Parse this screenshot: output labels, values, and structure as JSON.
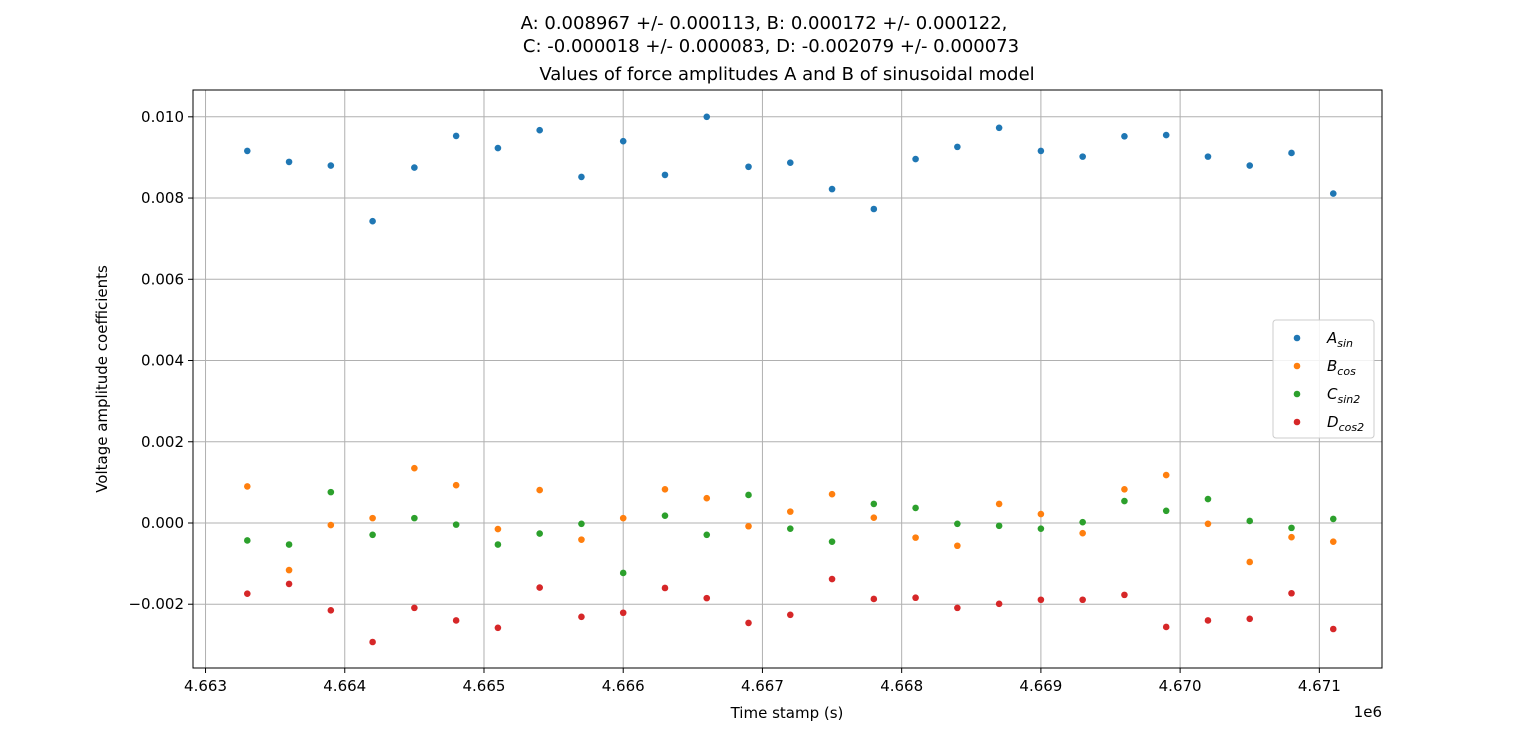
{
  "chart_data": {
    "type": "scatter",
    "suptitle_lines": [
      "A: 0.008967 +/- 0.000113, B: 0.000172 +/- 0.000122,",
      "C: -0.000018 +/- 0.000083, D: -0.002079 +/- 0.000073"
    ],
    "title": "Values of force amplitudes A and B of sinusoidal model",
    "xlabel": "Time stamp (s)",
    "ylabel": "Voltage amplitude coefficients",
    "x_offset_label": "1e6",
    "xlim": [
      4.66291,
      4.67145
    ],
    "ylim": [
      -0.00357,
      0.01066
    ],
    "xticks": [
      4.663,
      4.664,
      4.665,
      4.666,
      4.667,
      4.668,
      4.669,
      4.67,
      4.671
    ],
    "xtick_labels": [
      "4.663",
      "4.664",
      "4.665",
      "4.666",
      "4.667",
      "4.668",
      "4.669",
      "4.670",
      "4.671"
    ],
    "yticks": [
      -0.002,
      0.0,
      0.002,
      0.004,
      0.006,
      0.008,
      0.01
    ],
    "ytick_labels": [
      "−0.002",
      "0.000",
      "0.002",
      "0.004",
      "0.006",
      "0.008",
      "0.010"
    ],
    "grid": true,
    "legend_position": "center-right",
    "x": [
      4.6633,
      4.6636,
      4.6639,
      4.6642,
      4.6645,
      4.6648,
      4.6651,
      4.6654,
      4.6657,
      4.666,
      4.6663,
      4.6666,
      4.6669,
      4.6672,
      4.6675,
      4.6678,
      4.6681,
      4.6684,
      4.6687,
      4.669,
      4.6693,
      4.6696,
      4.6699,
      4.6702,
      4.6705,
      4.6708,
      4.6711
    ],
    "series": [
      {
        "name": "A",
        "subscript": "sin",
        "color": "#1f77b4",
        "values": [
          0.00916,
          0.00889,
          0.0088,
          0.00743,
          0.00875,
          0.00953,
          0.00923,
          0.00967,
          0.00852,
          0.0094,
          0.00857,
          0.01,
          0.00877,
          0.00887,
          0.00822,
          0.00773,
          0.00896,
          0.00926,
          0.00973,
          0.00916,
          0.00902,
          0.00952,
          0.00955,
          0.00902,
          0.0088,
          0.00911,
          0.00811
        ]
      },
      {
        "name": "B",
        "subscript": "cos",
        "color": "#ff7f0e",
        "values": [
          0.0009,
          -0.00116,
          -5e-05,
          0.00012,
          0.00135,
          0.00093,
          -0.00015,
          0.00081,
          -0.00041,
          0.00012,
          0.00083,
          0.00061,
          -8e-05,
          0.00028,
          0.00071,
          0.00013,
          -0.00036,
          -0.00056,
          0.00047,
          0.00022,
          -0.00025,
          0.00083,
          0.00118,
          -2e-05,
          -0.00096,
          -0.00035,
          -0.00046
        ]
      },
      {
        "name": "C",
        "subscript": "sin2",
        "color": "#2ca02c",
        "values": [
          -0.00043,
          -0.00053,
          0.00076,
          -0.00029,
          0.00012,
          -4e-05,
          -0.00053,
          -0.00026,
          -2e-05,
          -0.00123,
          0.00018,
          -0.00029,
          0.00069,
          -0.00014,
          -0.00046,
          0.00047,
          0.00037,
          -2e-05,
          -7e-05,
          -0.00014,
          2e-05,
          0.00054,
          0.0003,
          0.00059,
          5e-05,
          -0.00012,
          0.0001
        ]
      },
      {
        "name": "D",
        "subscript": "cos2",
        "color": "#d62728",
        "values": [
          -0.00174,
          -0.0015,
          -0.00215,
          -0.00293,
          -0.00209,
          -0.0024,
          -0.00258,
          -0.00159,
          -0.00231,
          -0.00221,
          -0.0016,
          -0.00185,
          -0.00246,
          -0.00226,
          -0.00138,
          -0.00187,
          -0.00184,
          -0.00209,
          -0.00199,
          -0.00189,
          -0.00189,
          -0.00177,
          -0.00256,
          -0.0024,
          -0.00236,
          -0.00173,
          -0.00261
        ]
      }
    ]
  }
}
